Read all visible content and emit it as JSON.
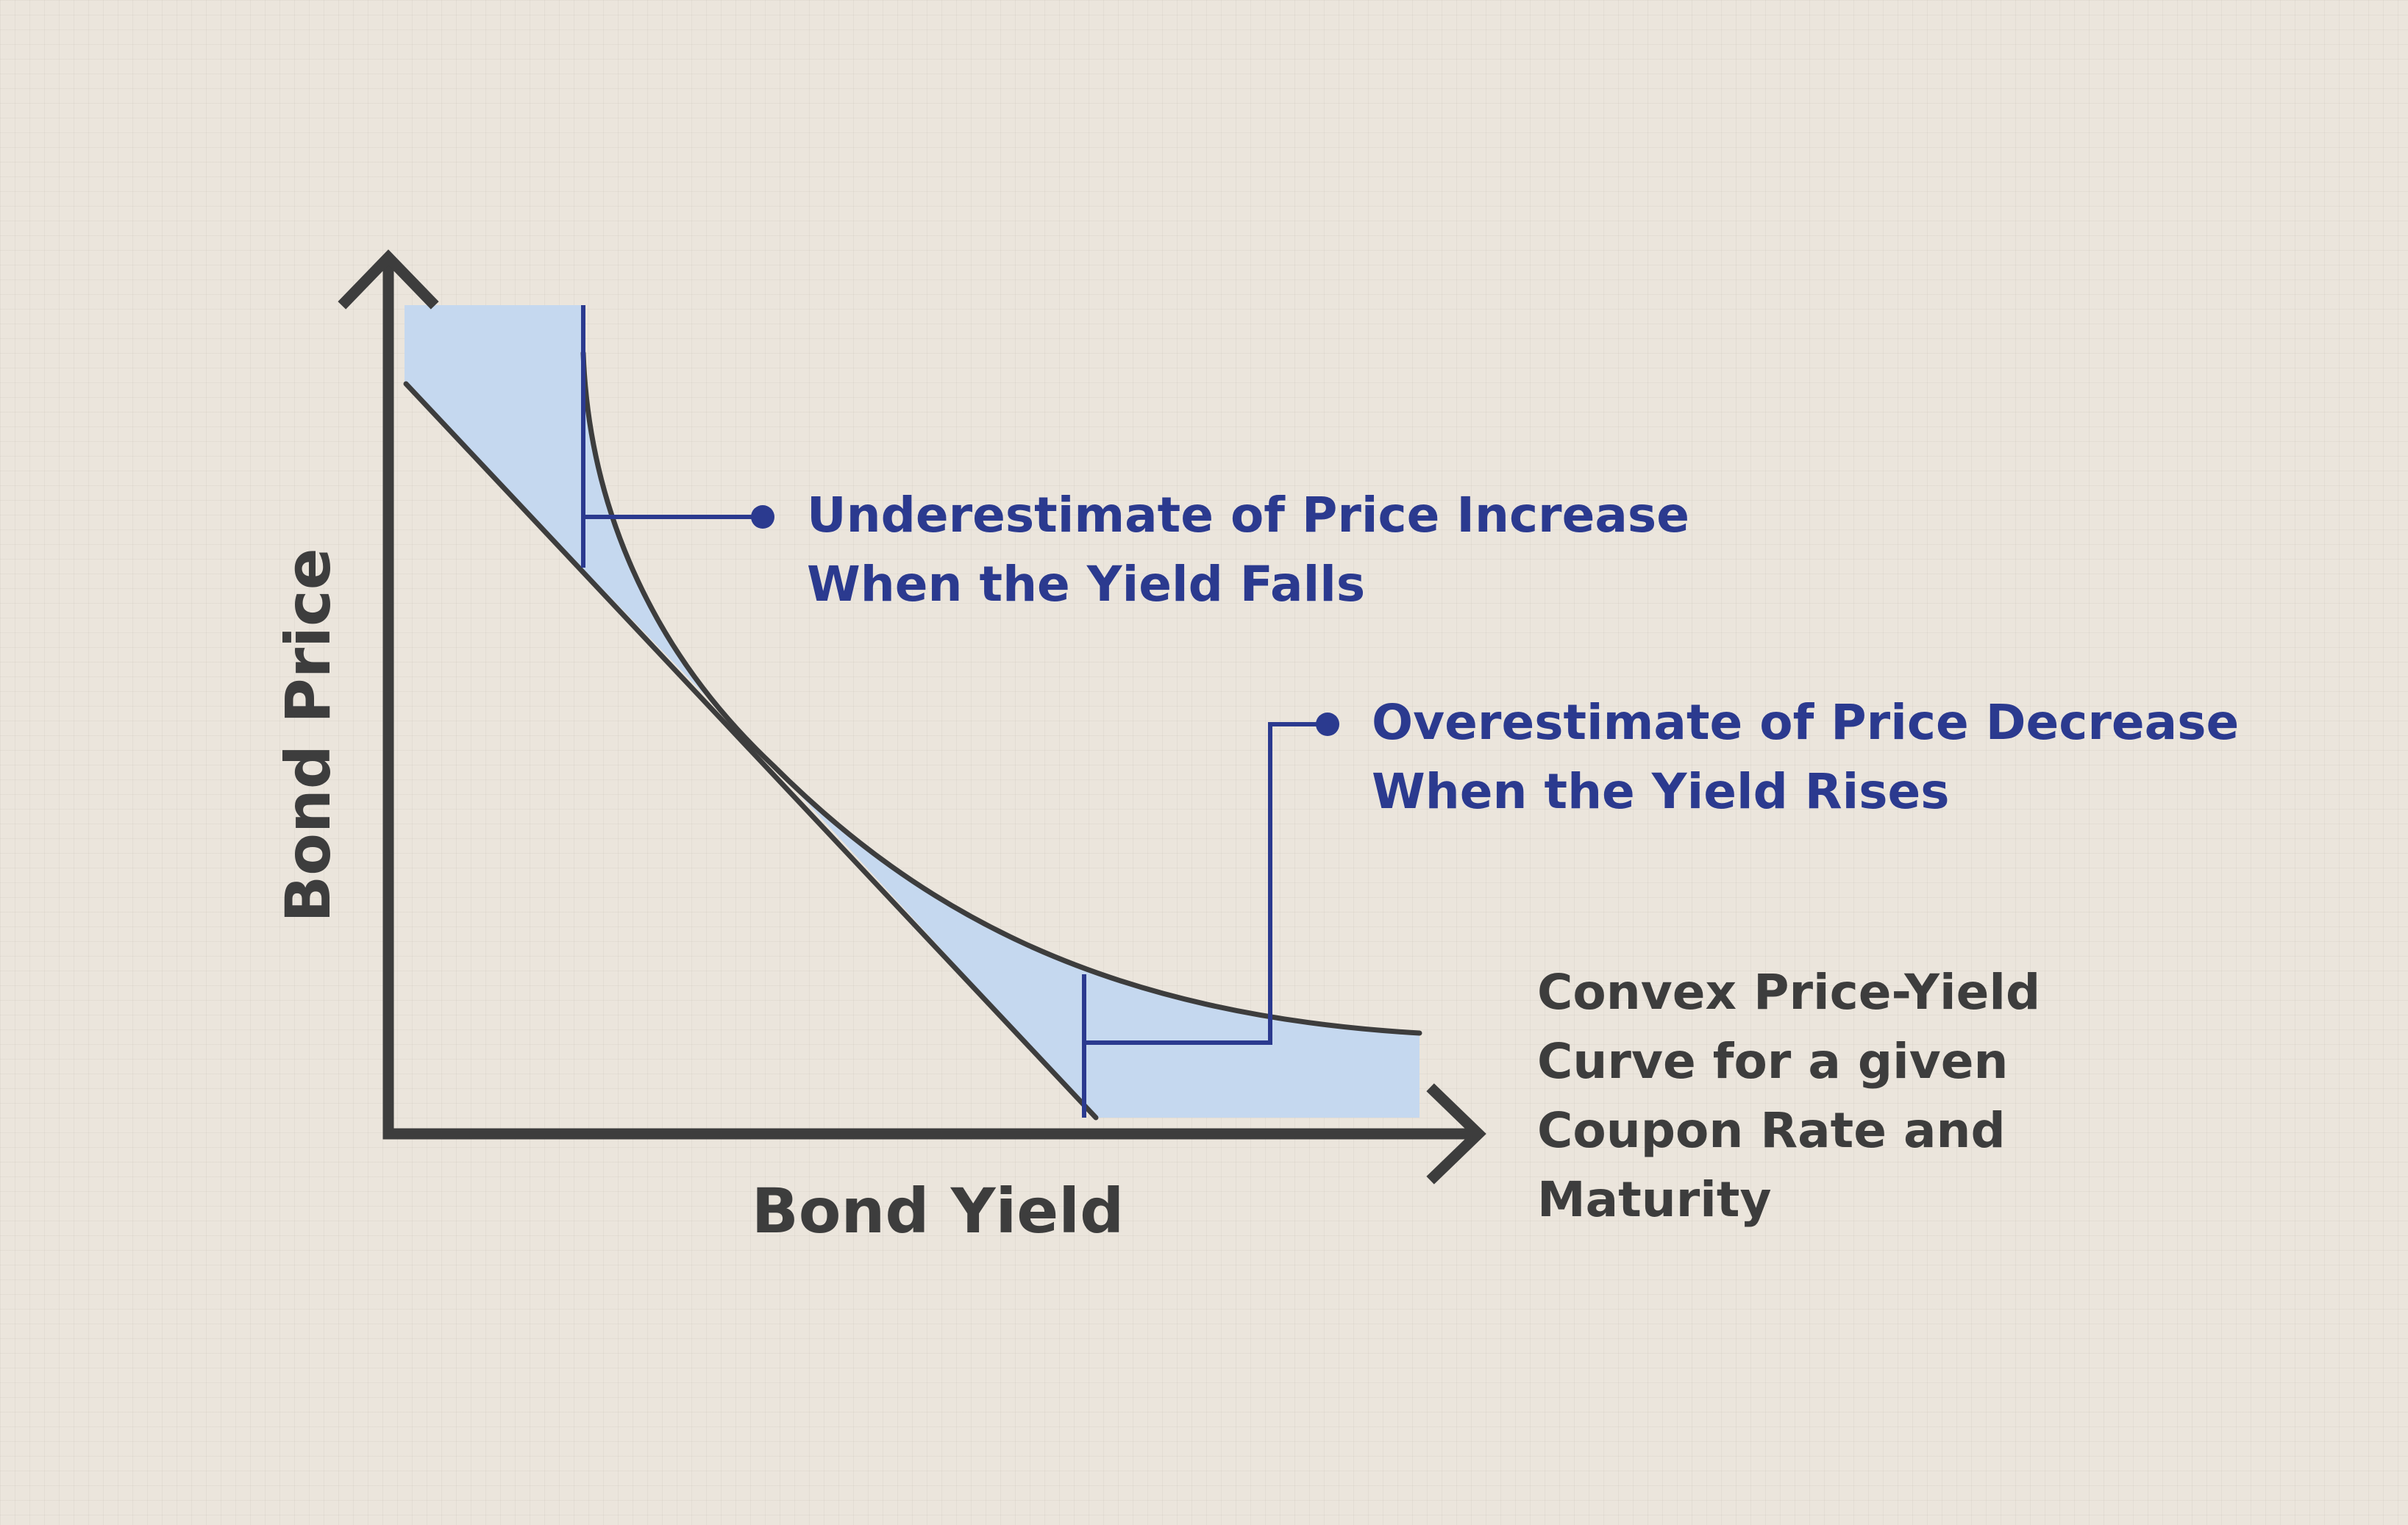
{
  "axes": {
    "x_label": "Bond Yield",
    "y_label": "Bond Price"
  },
  "callouts": {
    "underestimate": {
      "line1": "Underestimate of Price Increase",
      "line2": "When the Yield Falls"
    },
    "overestimate": {
      "line1": "Overestimate of Price Decrease",
      "line2": "When the Yield Rises"
    }
  },
  "curve_label": {
    "line1": "Convex Price-Yield",
    "line2": "Curve for a given",
    "line3": "Coupon Rate and",
    "line4": "Maturity"
  },
  "colors": {
    "background": "#ebe5dc",
    "axis": "#3d3d3d",
    "shade": "#c5d8ef",
    "callout": "#2b3a8f"
  }
}
